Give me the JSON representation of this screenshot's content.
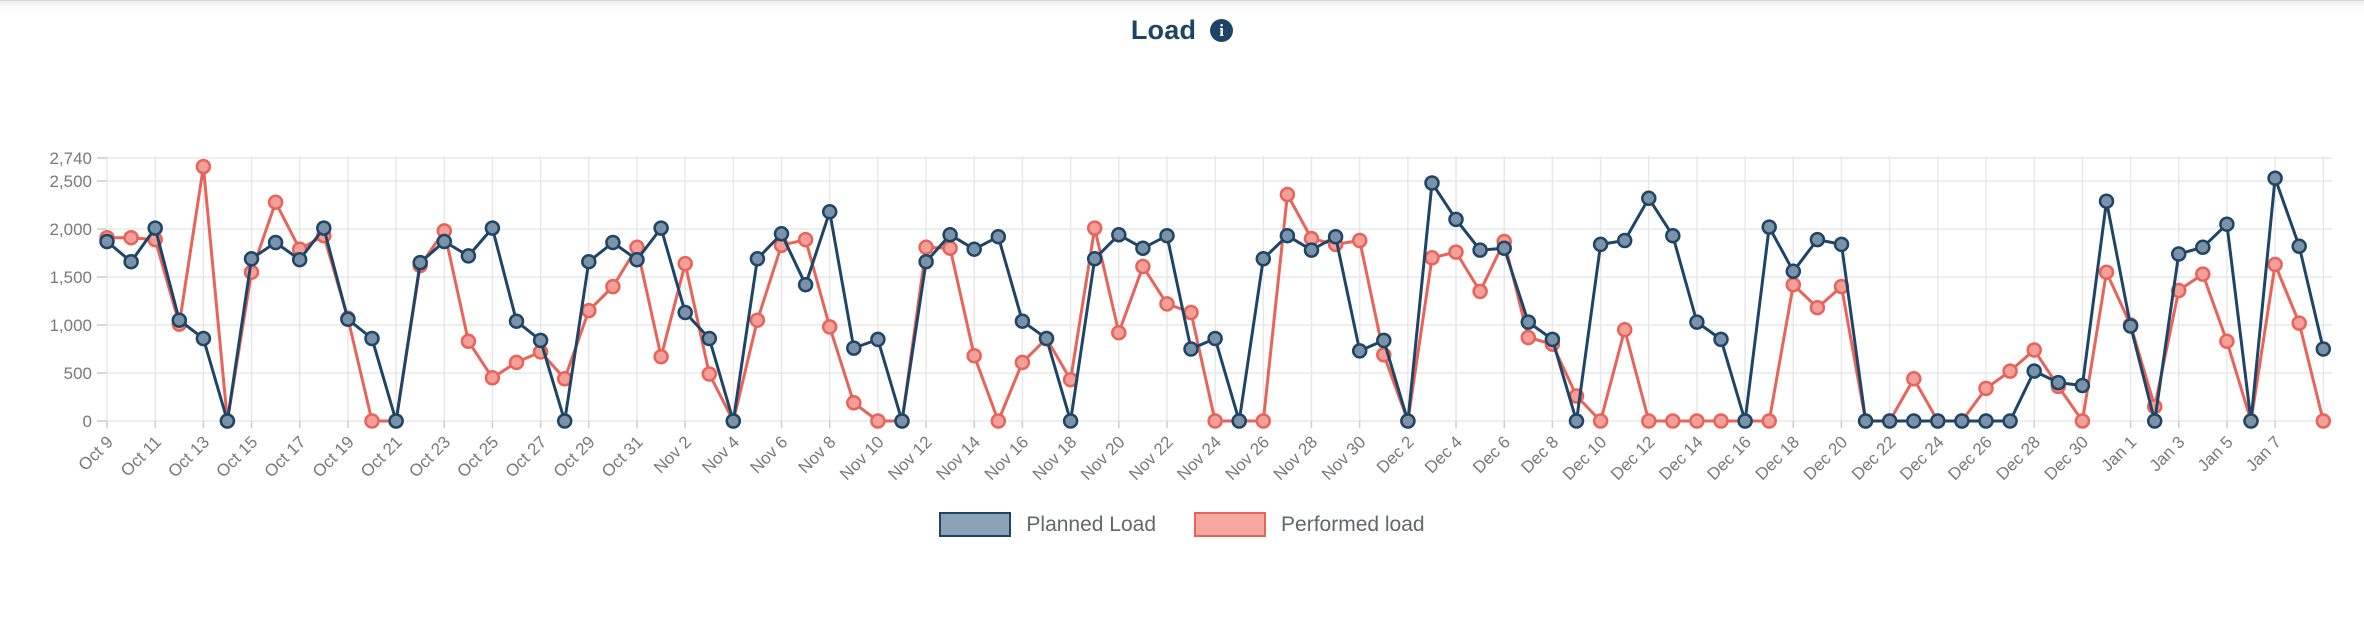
{
  "page": {
    "title": "Load"
  },
  "legend": {
    "items": [
      {
        "label": "Planned Load",
        "fill": "#8ca3b7",
        "border": "#1f4566"
      },
      {
        "label": "Performed load",
        "fill": "#f4a89f",
        "border": "#e8635a"
      }
    ]
  },
  "chart_data": {
    "type": "line",
    "title": "Load",
    "xlabel": "",
    "ylabel": "",
    "ylim": [
      0,
      2740
    ],
    "grid": true,
    "legend_position": "bottom",
    "y_ticks": [
      {
        "label": "2,740",
        "value": 2740
      },
      {
        "label": "2,500",
        "value": 2500
      },
      {
        "label": "2,000",
        "value": 2000
      },
      {
        "label": "1,500",
        "value": 1500
      },
      {
        "label": "1,000",
        "value": 1000
      },
      {
        "label": "500",
        "value": 500
      },
      {
        "label": "0",
        "value": 0
      }
    ],
    "x_label_every": 2,
    "x_label_max_index": 90,
    "categories": [
      "Oct 9",
      "Oct 10",
      "Oct 11",
      "Oct 12",
      "Oct 13",
      "Oct 14",
      "Oct 15",
      "Oct 16",
      "Oct 17",
      "Oct 18",
      "Oct 19",
      "Oct 20",
      "Oct 21",
      "Oct 22",
      "Oct 23",
      "Oct 24",
      "Oct 25",
      "Oct 26",
      "Oct 27",
      "Oct 28",
      "Oct 29",
      "Oct 30",
      "Oct 31",
      "Nov 1",
      "Nov 2",
      "Nov 3",
      "Nov 4",
      "Nov 5",
      "Nov 6",
      "Nov 7",
      "Nov 8",
      "Nov 9",
      "Nov 10",
      "Nov 11",
      "Nov 12",
      "Nov 13",
      "Nov 14",
      "Nov 15",
      "Nov 16",
      "Nov 17",
      "Nov 18",
      "Nov 19",
      "Nov 20",
      "Nov 21",
      "Nov 22",
      "Nov 23",
      "Nov 24",
      "Nov 25",
      "Nov 26",
      "Nov 27",
      "Nov 28",
      "Nov 29",
      "Nov 30",
      "Dec 1",
      "Dec 2",
      "Dec 3",
      "Dec 4",
      "Dec 5",
      "Dec 6",
      "Dec 7",
      "Dec 8",
      "Dec 9",
      "Dec 10",
      "Dec 11",
      "Dec 12",
      "Dec 13",
      "Dec 14",
      "Dec 15",
      "Dec 16",
      "Dec 17",
      "Dec 18",
      "Dec 19",
      "Dec 20",
      "Dec 21",
      "Dec 22",
      "Dec 23",
      "Dec 24",
      "Dec 25",
      "Dec 26",
      "Dec 27",
      "Dec 28",
      "Dec 29",
      "Dec 30",
      "Dec 31",
      "Jan 1",
      "Jan 2",
      "Jan 3",
      "Jan 4",
      "Jan 5",
      "Jan 6",
      "Jan 7",
      "Jan 8",
      "Jan 9"
    ],
    "series": [
      {
        "name": "Performed load",
        "line_color": "#e8635a",
        "marker_fill": "#f2a099",
        "values": [
          1910,
          1910,
          1890,
          1010,
          2650,
          0,
          1550,
          2280,
          1790,
          1930,
          1070,
          0,
          0,
          1620,
          1980,
          830,
          450,
          610,
          720,
          440,
          1150,
          1400,
          1810,
          670,
          1640,
          490,
          0,
          1050,
          1830,
          1890,
          980,
          190,
          0,
          0,
          1810,
          1800,
          680,
          0,
          610,
          860,
          430,
          2010,
          920,
          1610,
          1220,
          1130,
          0,
          0,
          0,
          2360,
          1900,
          1840,
          1880,
          690,
          0,
          1700,
          1760,
          1350,
          1870,
          870,
          800,
          260,
          0,
          950,
          0,
          0,
          0,
          0,
          0,
          0,
          1420,
          1180,
          1400,
          0,
          0,
          440,
          0,
          0,
          340,
          520,
          740,
          360,
          0,
          1550,
          1000,
          150,
          1360,
          1530,
          830,
          0,
          1630,
          1020,
          0
        ]
      },
      {
        "name": "Planned Load",
        "line_color": "#1f4566",
        "marker_fill": "#7b93a9",
        "values": [
          1870,
          1660,
          2010,
          1050,
          860,
          0,
          1690,
          1860,
          1680,
          2010,
          1060,
          860,
          0,
          1650,
          1870,
          1720,
          2010,
          1040,
          840,
          0,
          1660,
          1860,
          1680,
          2010,
          1130,
          860,
          0,
          1690,
          1950,
          1420,
          2180,
          760,
          850,
          0,
          1660,
          1940,
          1790,
          1920,
          1040,
          860,
          0,
          1690,
          1940,
          1800,
          1930,
          750,
          860,
          0,
          1690,
          1930,
          1780,
          1920,
          730,
          840,
          0,
          2480,
          2100,
          1780,
          1800,
          1030,
          850,
          0,
          1840,
          1880,
          2320,
          1930,
          1030,
          850,
          0,
          2020,
          1560,
          1890,
          1840,
          0,
          0,
          0,
          0,
          0,
          0,
          0,
          520,
          400,
          370,
          2290,
          990,
          0,
          1740,
          1810,
          2050,
          0,
          2530,
          1820,
          750
        ]
      }
    ]
  }
}
